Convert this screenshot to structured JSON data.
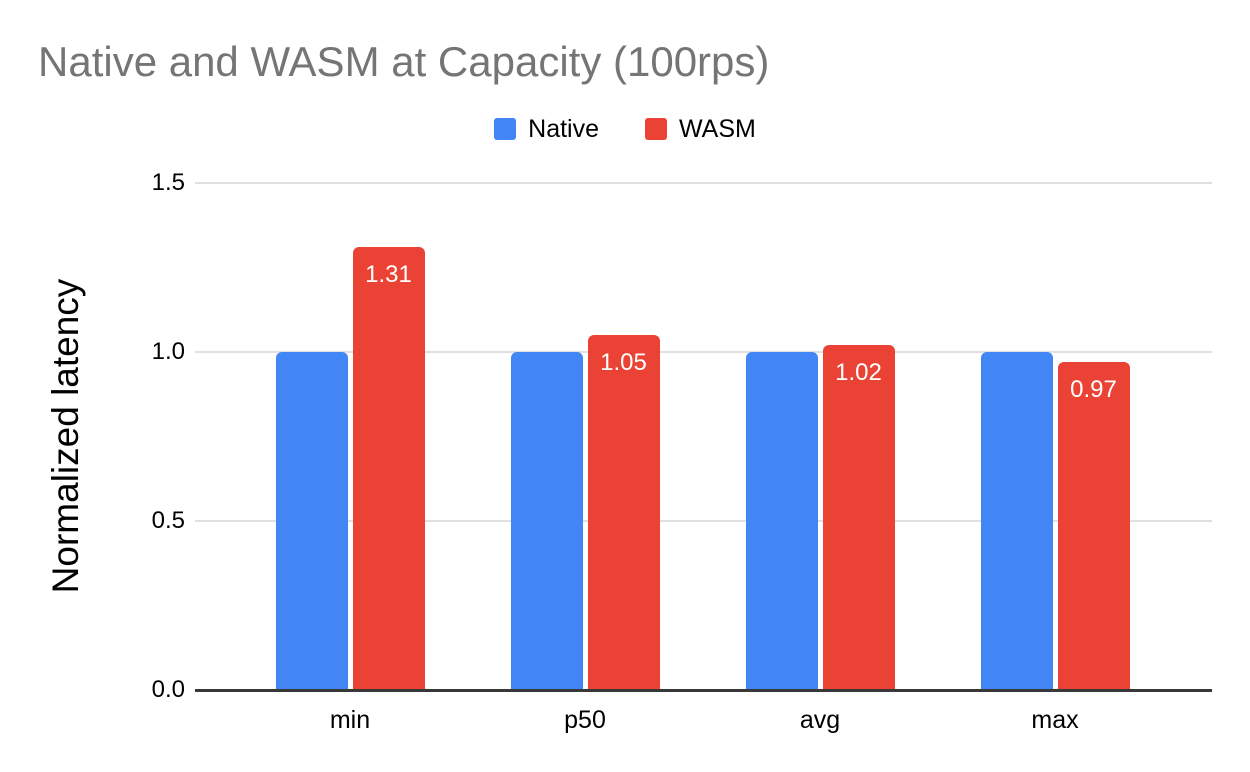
{
  "title": {
    "text": "Native and WASM at Capacity (100rps)"
  },
  "legend": {
    "items": [
      {
        "label": "Native",
        "color": "#4285F4"
      },
      {
        "label": "WASM",
        "color": "#EA4335"
      }
    ]
  },
  "chart_data": {
    "type": "bar",
    "title": "Native and WASM at Capacity (100rps)",
    "categories": [
      "min",
      "p50",
      "avg",
      "max"
    ],
    "series": [
      {
        "name": "Native",
        "color": "#4285F4",
        "values": [
          1.0,
          1.0,
          1.0,
          1.0
        ],
        "data_labels": [
          "",
          "",
          "",
          ""
        ]
      },
      {
        "name": "WASM",
        "color": "#EA4335",
        "values": [
          1.31,
          1.05,
          1.02,
          0.97
        ],
        "data_labels": [
          "1.31",
          "1.05",
          "1.02",
          "0.97"
        ]
      }
    ],
    "xlabel": "",
    "ylabel": "Normalized latency",
    "ylim": [
      0,
      1.5
    ],
    "yticks": [
      "0.0",
      "0.5",
      "1.0",
      "1.5"
    ],
    "grid": true,
    "legend_position": "top",
    "data_label_color": "#FFFFFF"
  },
  "colors": {
    "background": "#FFFFFF",
    "gridline": "#E0E0E0",
    "baseline": "#383838",
    "axis_text": "#000000",
    "title_text": "#757575",
    "series_native": "#4285F4",
    "series_wasm": "#EA4335"
  }
}
